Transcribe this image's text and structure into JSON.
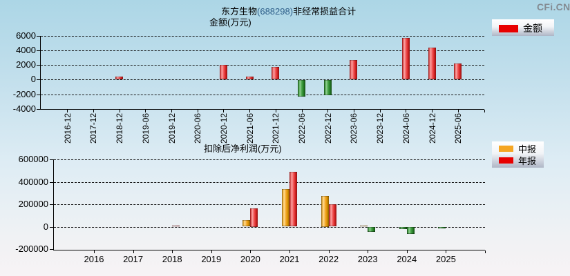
{
  "page": {
    "logo": "CFi.CN"
  },
  "chart_data": [
    {
      "type": "bar",
      "title": "东方生物(688298)非经常损益合计",
      "title_company": "东方生物",
      "title_code": "(688298)",
      "title_rest": "非经常损益合计",
      "subtitle": "金额(万元)",
      "unit": "万元",
      "categories": [
        "2016-12",
        "2017-12",
        "2018-12",
        "2019-06",
        "2019-12",
        "2020-06",
        "2020-12",
        "2021-06",
        "2021-12",
        "2022-06",
        "2022-12",
        "2023-06",
        "2023-12",
        "2024-06",
        "2024-12",
        "2025-06"
      ],
      "series": [
        {
          "name": "金额",
          "color": "#e80000",
          "values": [
            null,
            null,
            450,
            null,
            null,
            null,
            2000,
            450,
            1700,
            -2300,
            -2100,
            2700,
            null,
            5700,
            4350,
            2200
          ]
        }
      ],
      "yticks": [
        6000,
        4000,
        2000,
        0,
        -2000,
        -4000
      ],
      "ylim": [
        -4000,
        6000
      ],
      "grid": true,
      "legend_position": "top-right",
      "negative_color": "#2e8b2e"
    },
    {
      "type": "bar",
      "title": "扣除后净利润(万元)",
      "unit": "万元",
      "categories": [
        "2016",
        "2017",
        "2018",
        "2019",
        "2020",
        "2021",
        "2022",
        "2023",
        "2024",
        "2025"
      ],
      "series": [
        {
          "name": "中报",
          "color": "#f5a623",
          "values": [
            null,
            null,
            null,
            null,
            58000,
            336000,
            275000,
            8000,
            -16000,
            -15000
          ]
        },
        {
          "name": "年报",
          "color": "#e80000",
          "values": [
            null,
            null,
            8000,
            null,
            165000,
            487000,
            203000,
            -43000,
            -60000,
            null
          ]
        }
      ],
      "yticks": [
        600000,
        400000,
        200000,
        0,
        -200000
      ],
      "ylim": [
        -200000,
        600000
      ],
      "grid": true,
      "legend_position": "top-right",
      "negative_color": "#2e8b2e"
    }
  ]
}
